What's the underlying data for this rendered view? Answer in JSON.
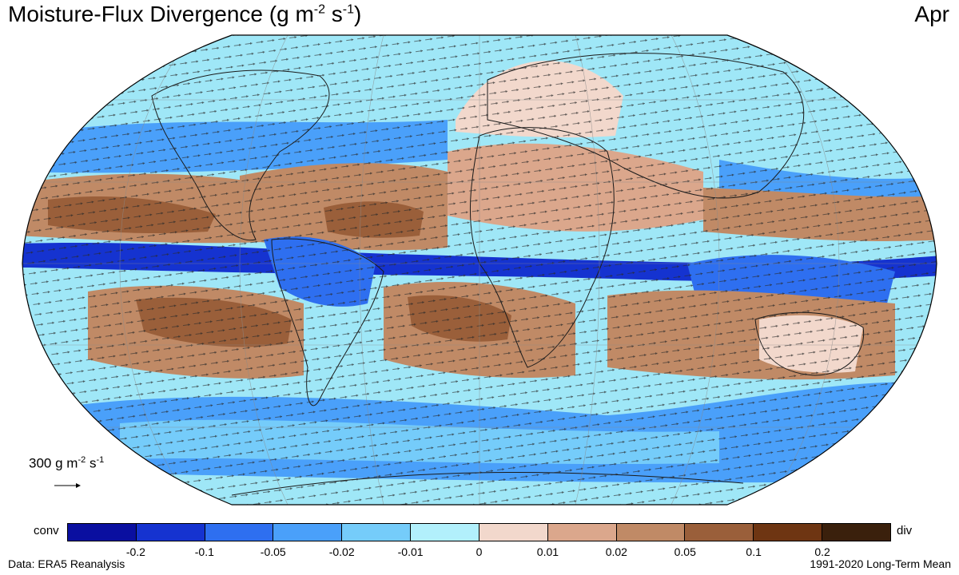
{
  "title": {
    "main": "Moisture-Flux Divergence (g m",
    "exp1": "-2",
    "mid": " s",
    "exp2": "-1",
    "end": ")"
  },
  "month": "Apr",
  "reference_vector": {
    "value": "300 g m",
    "exp1": "-2",
    "mid": " s",
    "exp2": "-1"
  },
  "colorbar": {
    "left_label": "conv",
    "right_label": "div",
    "colors": [
      "#0a0fa0",
      "#1533d0",
      "#2e6ff0",
      "#4aa0fa",
      "#75ccfa",
      "#b2f0fc",
      "#f2d8cc",
      "#dba78c",
      "#c08a66",
      "#9a5f3a",
      "#6e3512",
      "#3a200c"
    ],
    "ticks": [
      "-0.2",
      "-0.1",
      "-0.05",
      "-0.02",
      "-0.01",
      "0",
      "0.01",
      "0.02",
      "0.05",
      "0.1",
      "0.2"
    ]
  },
  "footer": {
    "source": "Data: ERA5 Reanalysis",
    "period": "1991-2020 Long-Term Mean"
  },
  "colors": {
    "ocean_background": "#9fe7f7",
    "land_outline": "#1a1a1a",
    "graticule": "#8a8a8a"
  }
}
